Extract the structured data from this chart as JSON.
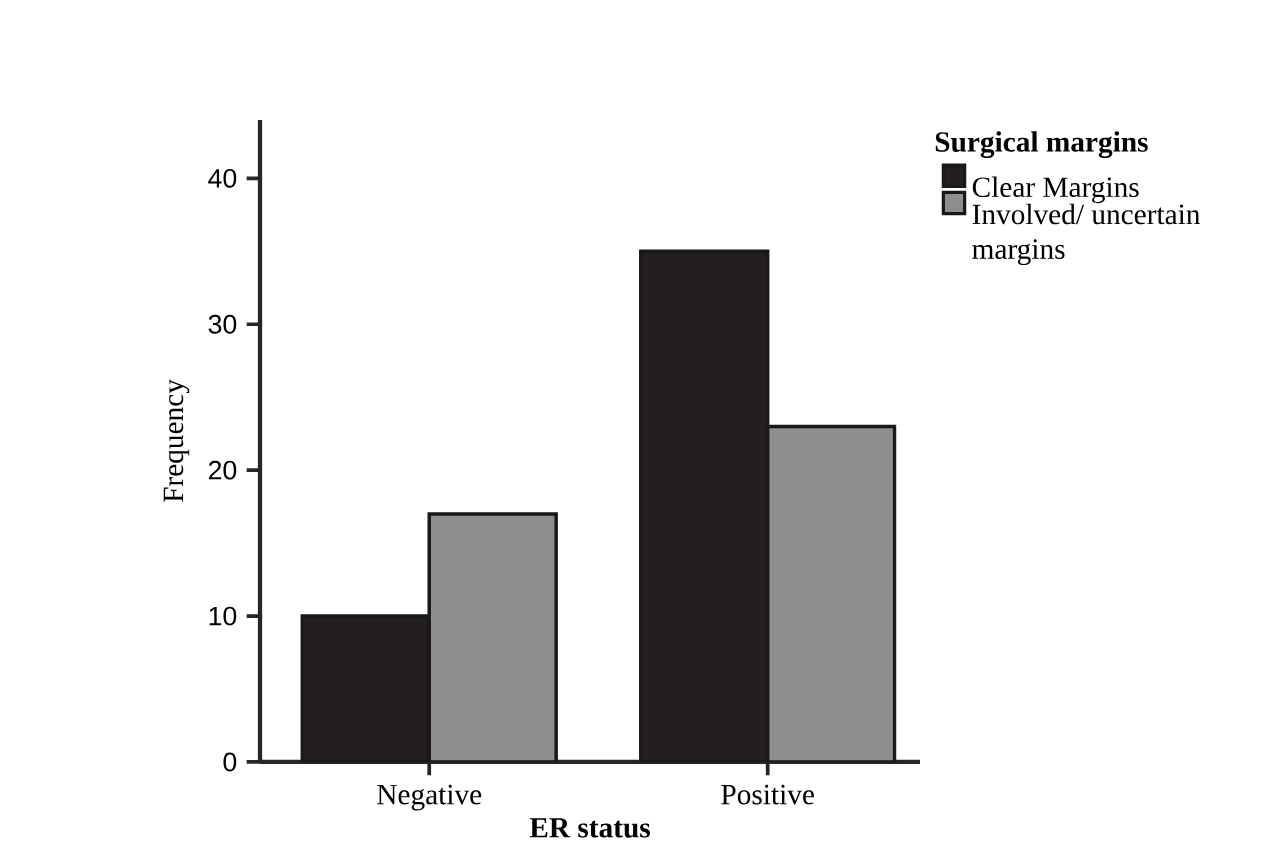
{
  "chart_data": {
    "type": "bar",
    "xlabel": "ER status",
    "ylabel": "Frequency",
    "legend_title": "Surgical margins",
    "categories": [
      "Negative",
      "Positive"
    ],
    "series": [
      {
        "name": "Clear Margins",
        "color": "#231f20",
        "values": [
          10,
          35
        ]
      },
      {
        "name": "Involved/ uncertain margins",
        "color": "#8e8e90",
        "values": [
          17,
          23
        ]
      }
    ],
    "ylim": [
      0,
      44
    ],
    "yticks": [
      0,
      10,
      20,
      30,
      40
    ],
    "grid": false,
    "legend": "top right"
  }
}
